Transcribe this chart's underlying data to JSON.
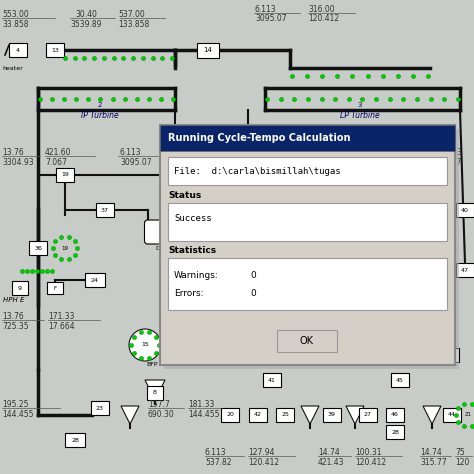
{
  "title": "Running Cycle-Tempo Calculation",
  "file_label": "File:  d:\\carla\\bismillah\\tugas",
  "status_label": "Status",
  "status_value": "Success",
  "statistics_label": "Statistics",
  "warnings_label": "Warnings:",
  "warnings_value": "0",
  "errors_label": "Errors:",
  "errors_value": "0",
  "ok_button": "OK",
  "diagram_bg": "#c8ccc8",
  "dialog_bg": "#d4d0c8",
  "field_bg": "#ffffff",
  "title_bar_bg": "#0a246a",
  "title_bar_text": "#ffffff",
  "line_color": "#111111",
  "green_dot_color": "#00cc00",
  "node_fc": "#ffffff",
  "turbine_label_color": "#000066"
}
